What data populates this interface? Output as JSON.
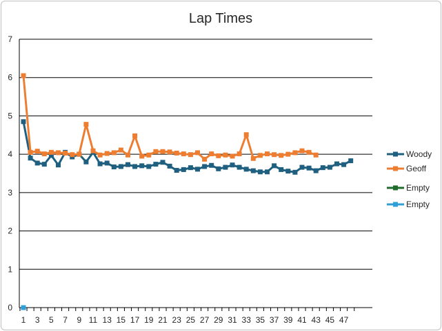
{
  "chart_data": {
    "type": "line",
    "title": "Lap Times",
    "xlabel": "",
    "ylabel": "",
    "ylim": [
      0,
      7
    ],
    "y_ticks": [
      0,
      1,
      2,
      3,
      4,
      5,
      6,
      7
    ],
    "x_tick_labels": [
      "1",
      "3",
      "5",
      "7",
      "9",
      "11",
      "13",
      "15",
      "17",
      "19",
      "21",
      "23",
      "25",
      "27",
      "29",
      "31",
      "33",
      "35",
      "37",
      "39",
      "41",
      "43",
      "45",
      "47"
    ],
    "x_count": 48,
    "grid": true,
    "legend_position": "right",
    "series": [
      {
        "name": "Woody",
        "color": "#1f5f7f",
        "values": [
          4.85,
          3.9,
          3.77,
          3.74,
          3.97,
          3.72,
          4.05,
          3.93,
          4.0,
          3.8,
          4.05,
          3.75,
          3.77,
          3.67,
          3.68,
          3.73,
          3.68,
          3.7,
          3.68,
          3.74,
          3.79,
          3.69,
          3.58,
          3.6,
          3.65,
          3.61,
          3.68,
          3.71,
          3.62,
          3.66,
          3.72,
          3.66,
          3.61,
          3.57,
          3.54,
          3.54,
          3.7,
          3.6,
          3.56,
          3.53,
          3.66,
          3.64,
          3.57,
          3.65,
          3.66,
          3.75,
          3.73,
          3.83
        ]
      },
      {
        "name": "Geoff",
        "color": "#ed7d31",
        "values": [
          6.05,
          4.05,
          4.08,
          4.01,
          4.05,
          4.04,
          4.03,
          3.99,
          4.0,
          4.78,
          4.09,
          3.98,
          4.02,
          4.04,
          4.11,
          3.98,
          4.48,
          3.95,
          3.98,
          4.07,
          4.07,
          4.06,
          4.03,
          4.01,
          3.99,
          4.04,
          3.87,
          4.01,
          3.96,
          3.98,
          3.95,
          4.01,
          4.51,
          3.89,
          3.97,
          4.01,
          3.99,
          3.97,
          4.0,
          4.04,
          4.09,
          4.05,
          3.98
        ]
      },
      {
        "name": "Empty",
        "color": "#1e6b2a",
        "values": [
          0
        ]
      },
      {
        "name": "Empty",
        "color": "#2f9fd7",
        "values": [
          0
        ]
      }
    ]
  }
}
